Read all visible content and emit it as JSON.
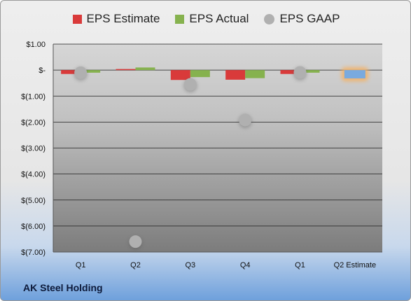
{
  "chart_data": {
    "type": "bar",
    "categories": [
      "Q1",
      "Q2",
      "Q3",
      "Q4",
      "Q1",
      "Q2 Estimate"
    ],
    "series": [
      {
        "name": "EPS Estimate",
        "color": "#d93a3a",
        "values": [
          -0.15,
          0.04,
          -0.38,
          -0.37,
          -0.15,
          null
        ]
      },
      {
        "name": "EPS Actual",
        "color": "#86b24e",
        "values": [
          -0.1,
          0.1,
          -0.27,
          -0.31,
          -0.1,
          null
        ]
      },
      {
        "name": "EPS GAAP",
        "color": "#b0b0b0",
        "marker": "circle",
        "values": [
          -0.1,
          -6.6,
          -0.55,
          -1.92,
          -0.09,
          null
        ]
      }
    ],
    "estimate": {
      "category": "Q2 Estimate",
      "value": -0.32,
      "color": "#7aaade",
      "highlight": "#f2b36a"
    },
    "yticks": [
      "$1.00",
      "$-",
      "$(1.00)",
      "$(2.00)",
      "$(3.00)",
      "$(4.00)",
      "$(5.00)",
      "$(6.00)",
      "$(7.00)"
    ],
    "ylim": [
      -7,
      1
    ],
    "grid": true,
    "legend_position": "top"
  },
  "footer": {
    "company": "AK Steel Holding"
  }
}
